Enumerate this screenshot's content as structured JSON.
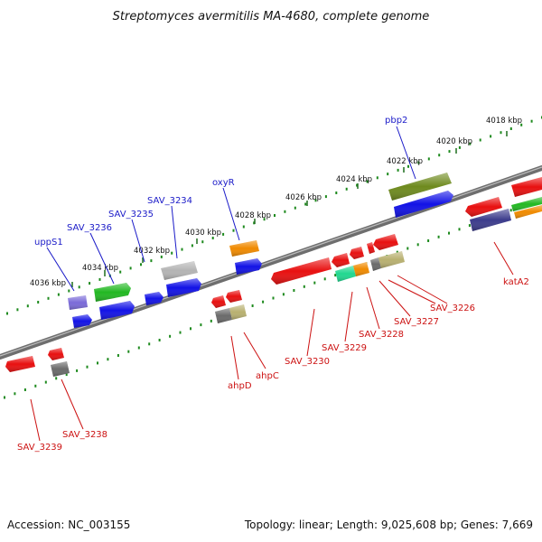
{
  "title": "Streptomyces avermitilis MA-4680, complete genome",
  "footer": {
    "accession": "Accession: NC_003155",
    "summary": "Topology: linear; Length: 9,025,608 bp; Genes: 7,669"
  },
  "ticks": [
    "4036 kbp",
    "4034 kbp",
    "4032 kbp",
    "4030 kbp",
    "4028 kbp",
    "4026 kbp",
    "4024 kbp",
    "4022 kbp",
    "4020 kbp",
    "4018 kbp"
  ],
  "genes_top": [
    "uppS1",
    "SAV_3236",
    "SAV_3235",
    "SAV_3234",
    "oxyR",
    "pbp2"
  ],
  "genes_bottom": [
    "SAV_3239",
    "SAV_3238",
    "ahpD",
    "ahpC",
    "SAV_3230",
    "SAV_3229",
    "SAV_3228",
    "SAV_3227",
    "SAV_3226",
    "katA2"
  ],
  "colors": {
    "forward_label": "#1a1ac8",
    "reverse_label": "#cc1111",
    "backbone": "#7a7a7a",
    "tick_dots": "#1e8a1e"
  }
}
